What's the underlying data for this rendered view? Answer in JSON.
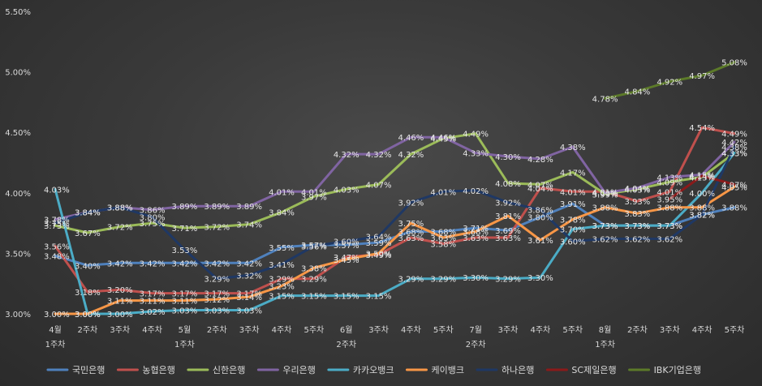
{
  "chart_data": {
    "type": "line",
    "categories": [
      "4월 1주차",
      "2주차",
      "3주차",
      "4주차",
      "5월 1주차",
      "2주차",
      "3주차",
      "4주차",
      "5주차",
      "6월 2주차",
      "3주차",
      "4주차",
      "5주차",
      "7월 2주차",
      "3주차",
      "4주차",
      "5주차",
      "8월 1주차",
      "2주차",
      "3주차",
      "4주차",
      "5주차"
    ],
    "category_lines": [
      [
        "4월",
        "1주차"
      ],
      [
        "2주차"
      ],
      [
        "3주차"
      ],
      [
        "4주차"
      ],
      [
        "5월",
        "1주차"
      ],
      [
        "2주차"
      ],
      [
        "3주차"
      ],
      [
        "4주차"
      ],
      [
        "5주차"
      ],
      [
        "6월",
        "2주차"
      ],
      [
        "3주차"
      ],
      [
        "4주차"
      ],
      [
        "5주차"
      ],
      [
        "7월",
        "2주차"
      ],
      [
        "3주차"
      ],
      [
        "4주차"
      ],
      [
        "5주차"
      ],
      [
        "8월",
        "1주차"
      ],
      [
        "2주차"
      ],
      [
        "3주차"
      ],
      [
        "4주차"
      ],
      [
        "5주차"
      ]
    ],
    "ylim": [
      3.0,
      5.5
    ],
    "yticks": [
      "3.00%",
      "3.50%",
      "4.00%",
      "4.50%",
      "5.00%",
      "5.50%"
    ],
    "grid": false,
    "legend_position": "bottom",
    "series": [
      {
        "name": "국민은행",
        "color": "#4f81bd",
        "values": [
          3.48,
          3.4,
          3.42,
          3.42,
          3.42,
          3.42,
          3.42,
          3.55,
          3.57,
          3.57,
          3.59,
          3.68,
          3.68,
          3.71,
          3.69,
          3.8,
          3.91,
          3.73,
          3.73,
          3.73,
          3.82,
          3.88
        ],
        "labels": [
          "3.48%",
          "3.40%",
          "3.42%",
          "3.42%",
          "3.42%",
          "3.42%",
          "3.42%",
          "3.55%",
          "3.57%",
          "3.57%",
          "3.59%",
          "3.68%",
          "3.68%",
          "3.71%",
          "3.69%",
          "3.80%",
          "3.91%",
          "3.73%",
          "3.73%",
          "3.73%",
          "3.82%",
          "3.88%"
        ]
      },
      {
        "name": "농협은행",
        "color": "#c0504d",
        "values": [
          3.56,
          3.18,
          3.2,
          3.17,
          3.17,
          3.17,
          3.17,
          3.29,
          3.29,
          3.47,
          3.49,
          3.63,
          3.58,
          3.63,
          3.63,
          4.04,
          4.01,
          4.01,
          3.93,
          4.01,
          4.54,
          4.49
        ],
        "labels": [
          "3.56%",
          "3.18%",
          "3.20%",
          "3.17%",
          "3.17%",
          "3.17%",
          "3.17%",
          "3.29%",
          "3.29%",
          "3.47%",
          "3.49%",
          "3.63%",
          "3.58%",
          "3.63%",
          "3.63%",
          "4.04%",
          "4.01%",
          "4.01%",
          "3.93%",
          "4.01%",
          "4.54%",
          "4.49%"
        ]
      },
      {
        "name": "신한은행",
        "color": "#9bbb59",
        "values": [
          3.73,
          3.67,
          3.72,
          3.75,
          3.71,
          3.72,
          3.74,
          3.84,
          3.97,
          4.03,
          4.07,
          4.32,
          4.45,
          4.49,
          4.08,
          4.07,
          4.17,
          3.99,
          4.03,
          4.09,
          4.13,
          4.33
        ],
        "labels": [
          "3.73%",
          "3.67%",
          "3.72%",
          "3.75%",
          "3.71%",
          "3.72%",
          "3.74%",
          "3.84%",
          "3.97%",
          "4.03%",
          "4.07%",
          "4.32%",
          "4.45%",
          "4.49%",
          "4.08%",
          "4.07%",
          "4.17%",
          "3.99%",
          "4.03%",
          "4.09%",
          "4.13%",
          "4.33%"
        ]
      },
      {
        "name": "우리은행",
        "color": "#8064a2",
        "values": [
          3.78,
          3.84,
          3.88,
          3.86,
          3.89,
          3.89,
          3.89,
          4.01,
          4.01,
          4.32,
          4.32,
          4.46,
          4.46,
          4.33,
          4.3,
          4.28,
          4.38,
          4.0,
          4.04,
          4.13,
          4.15,
          4.42
        ],
        "labels": [
          "3.78%",
          "3.84%",
          "3.88%",
          "3.86%",
          "3.89%",
          "3.89%",
          "3.89%",
          "4.01%",
          "4.01%",
          "4.32%",
          "4.32%",
          "4.46%",
          "4.46%",
          "4.33%",
          "4.30%",
          "4.28%",
          "4.38%",
          "4.00%",
          "4.04%",
          "4.13%",
          "4.15%",
          "4.42%"
        ]
      },
      {
        "name": "카카오뱅크",
        "color": "#4bacc6",
        "values": [
          4.03,
          3.0,
          3.0,
          3.02,
          3.03,
          3.03,
          3.03,
          3.15,
          3.15,
          3.15,
          3.15,
          3.29,
          3.29,
          3.3,
          3.29,
          3.3,
          3.7,
          3.73,
          3.73,
          3.73,
          4.0,
          4.33
        ],
        "labels": [
          "4.03%",
          "3.00%",
          "3.00%",
          "3.02%",
          "3.03%",
          "3.03%",
          "3.03%",
          "3.15%",
          "3.15%",
          "3.15%",
          "3.15%",
          "3.29%",
          "3.29%",
          "3.30%",
          "3.29%",
          "3.30%",
          "3.70%",
          "3.73%",
          "3.73%",
          "3.73%",
          "4.00%",
          "4.33%"
        ]
      },
      {
        "name": "케이뱅크",
        "color": "#f79646",
        "values": [
          3.0,
          3.0,
          3.11,
          3.11,
          3.11,
          3.12,
          3.14,
          3.23,
          3.38,
          3.45,
          3.5,
          3.75,
          3.63,
          3.68,
          3.81,
          3.61,
          3.78,
          3.88,
          3.83,
          3.88,
          3.88,
          4.05
        ],
        "labels": [
          "3.00%",
          "3.00%",
          "3.11%",
          "3.11%",
          "3.11%",
          "3.12%",
          "3.14%",
          "3.23%",
          "3.38%",
          "3.45%",
          "3.50%",
          "3.75%",
          "3.63%",
          "3.68%",
          "3.81%",
          "3.61%",
          "3.78%",
          "3.88%",
          "3.83%",
          "3.88%",
          "3.88%",
          "4.05%"
        ]
      },
      {
        "name": "하나은행",
        "color": "#1f3864",
        "values": [
          3.75,
          3.84,
          3.88,
          3.8,
          3.53,
          3.29,
          3.32,
          3.41,
          3.56,
          3.6,
          3.64,
          3.92,
          4.01,
          4.02,
          3.92,
          3.86,
          3.6,
          3.62,
          3.62,
          3.62,
          3.82,
          4.38
        ],
        "labels": [
          "3.75%",
          "3.84%",
          "3.88%",
          "3.80%",
          "3.53%",
          "3.29%",
          "3.32%",
          "3.41%",
          "3.56%",
          "3.60%",
          "3.64%",
          "3.92%",
          "4.01%",
          "4.02%",
          "3.92%",
          "3.86%",
          "3.60%",
          "3.62%",
          "3.62%",
          "3.62%",
          "3.82%",
          "4.38%"
        ]
      },
      {
        "name": "SC제일은행",
        "color": "#8b1a1a",
        "values": [
          null,
          null,
          null,
          null,
          null,
          null,
          null,
          null,
          null,
          null,
          null,
          null,
          null,
          null,
          null,
          null,
          null,
          null,
          null,
          3.95,
          4.14,
          4.07
        ],
        "labels": [
          null,
          null,
          null,
          null,
          null,
          null,
          null,
          null,
          null,
          null,
          null,
          null,
          null,
          null,
          null,
          null,
          null,
          null,
          null,
          "3.95%",
          "4.14%",
          "4.07%"
        ]
      },
      {
        "name": "IBK기업은행",
        "color": "#5c7a29",
        "values": [
          null,
          null,
          null,
          null,
          null,
          null,
          null,
          null,
          null,
          null,
          null,
          null,
          null,
          null,
          null,
          null,
          null,
          4.78,
          4.84,
          4.92,
          4.97,
          5.08
        ],
        "labels": [
          null,
          null,
          null,
          null,
          null,
          null,
          null,
          null,
          null,
          null,
          null,
          null,
          null,
          null,
          null,
          null,
          null,
          "4.78%",
          "4.84%",
          "4.92%",
          "4.97%",
          "5.08%"
        ]
      }
    ]
  }
}
